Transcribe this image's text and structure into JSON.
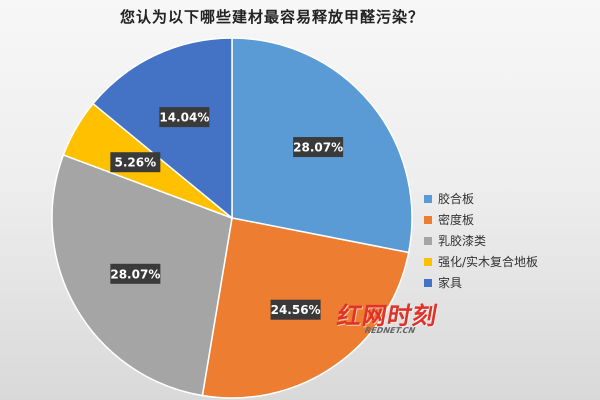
{
  "chart_data": {
    "type": "pie",
    "title": "您认为以下哪些建材最容易释放甲醛污染？",
    "categories": [
      "胶合板",
      "密度板",
      "乳胶漆类",
      "强化/实木复合地板",
      "家具"
    ],
    "values": [
      28.07,
      24.56,
      28.07,
      5.26,
      14.04
    ],
    "data_labels": [
      "28.07%",
      "24.56%",
      "28.07%",
      "5.26%",
      "14.04%"
    ],
    "colors": [
      "#5b9bd5",
      "#ed7d31",
      "#a5a5a5",
      "#ffc000",
      "#4472c4"
    ],
    "legend_position": "right"
  },
  "watermark": {
    "brand": "红网时刻",
    "domain": "REDNET.CN"
  }
}
